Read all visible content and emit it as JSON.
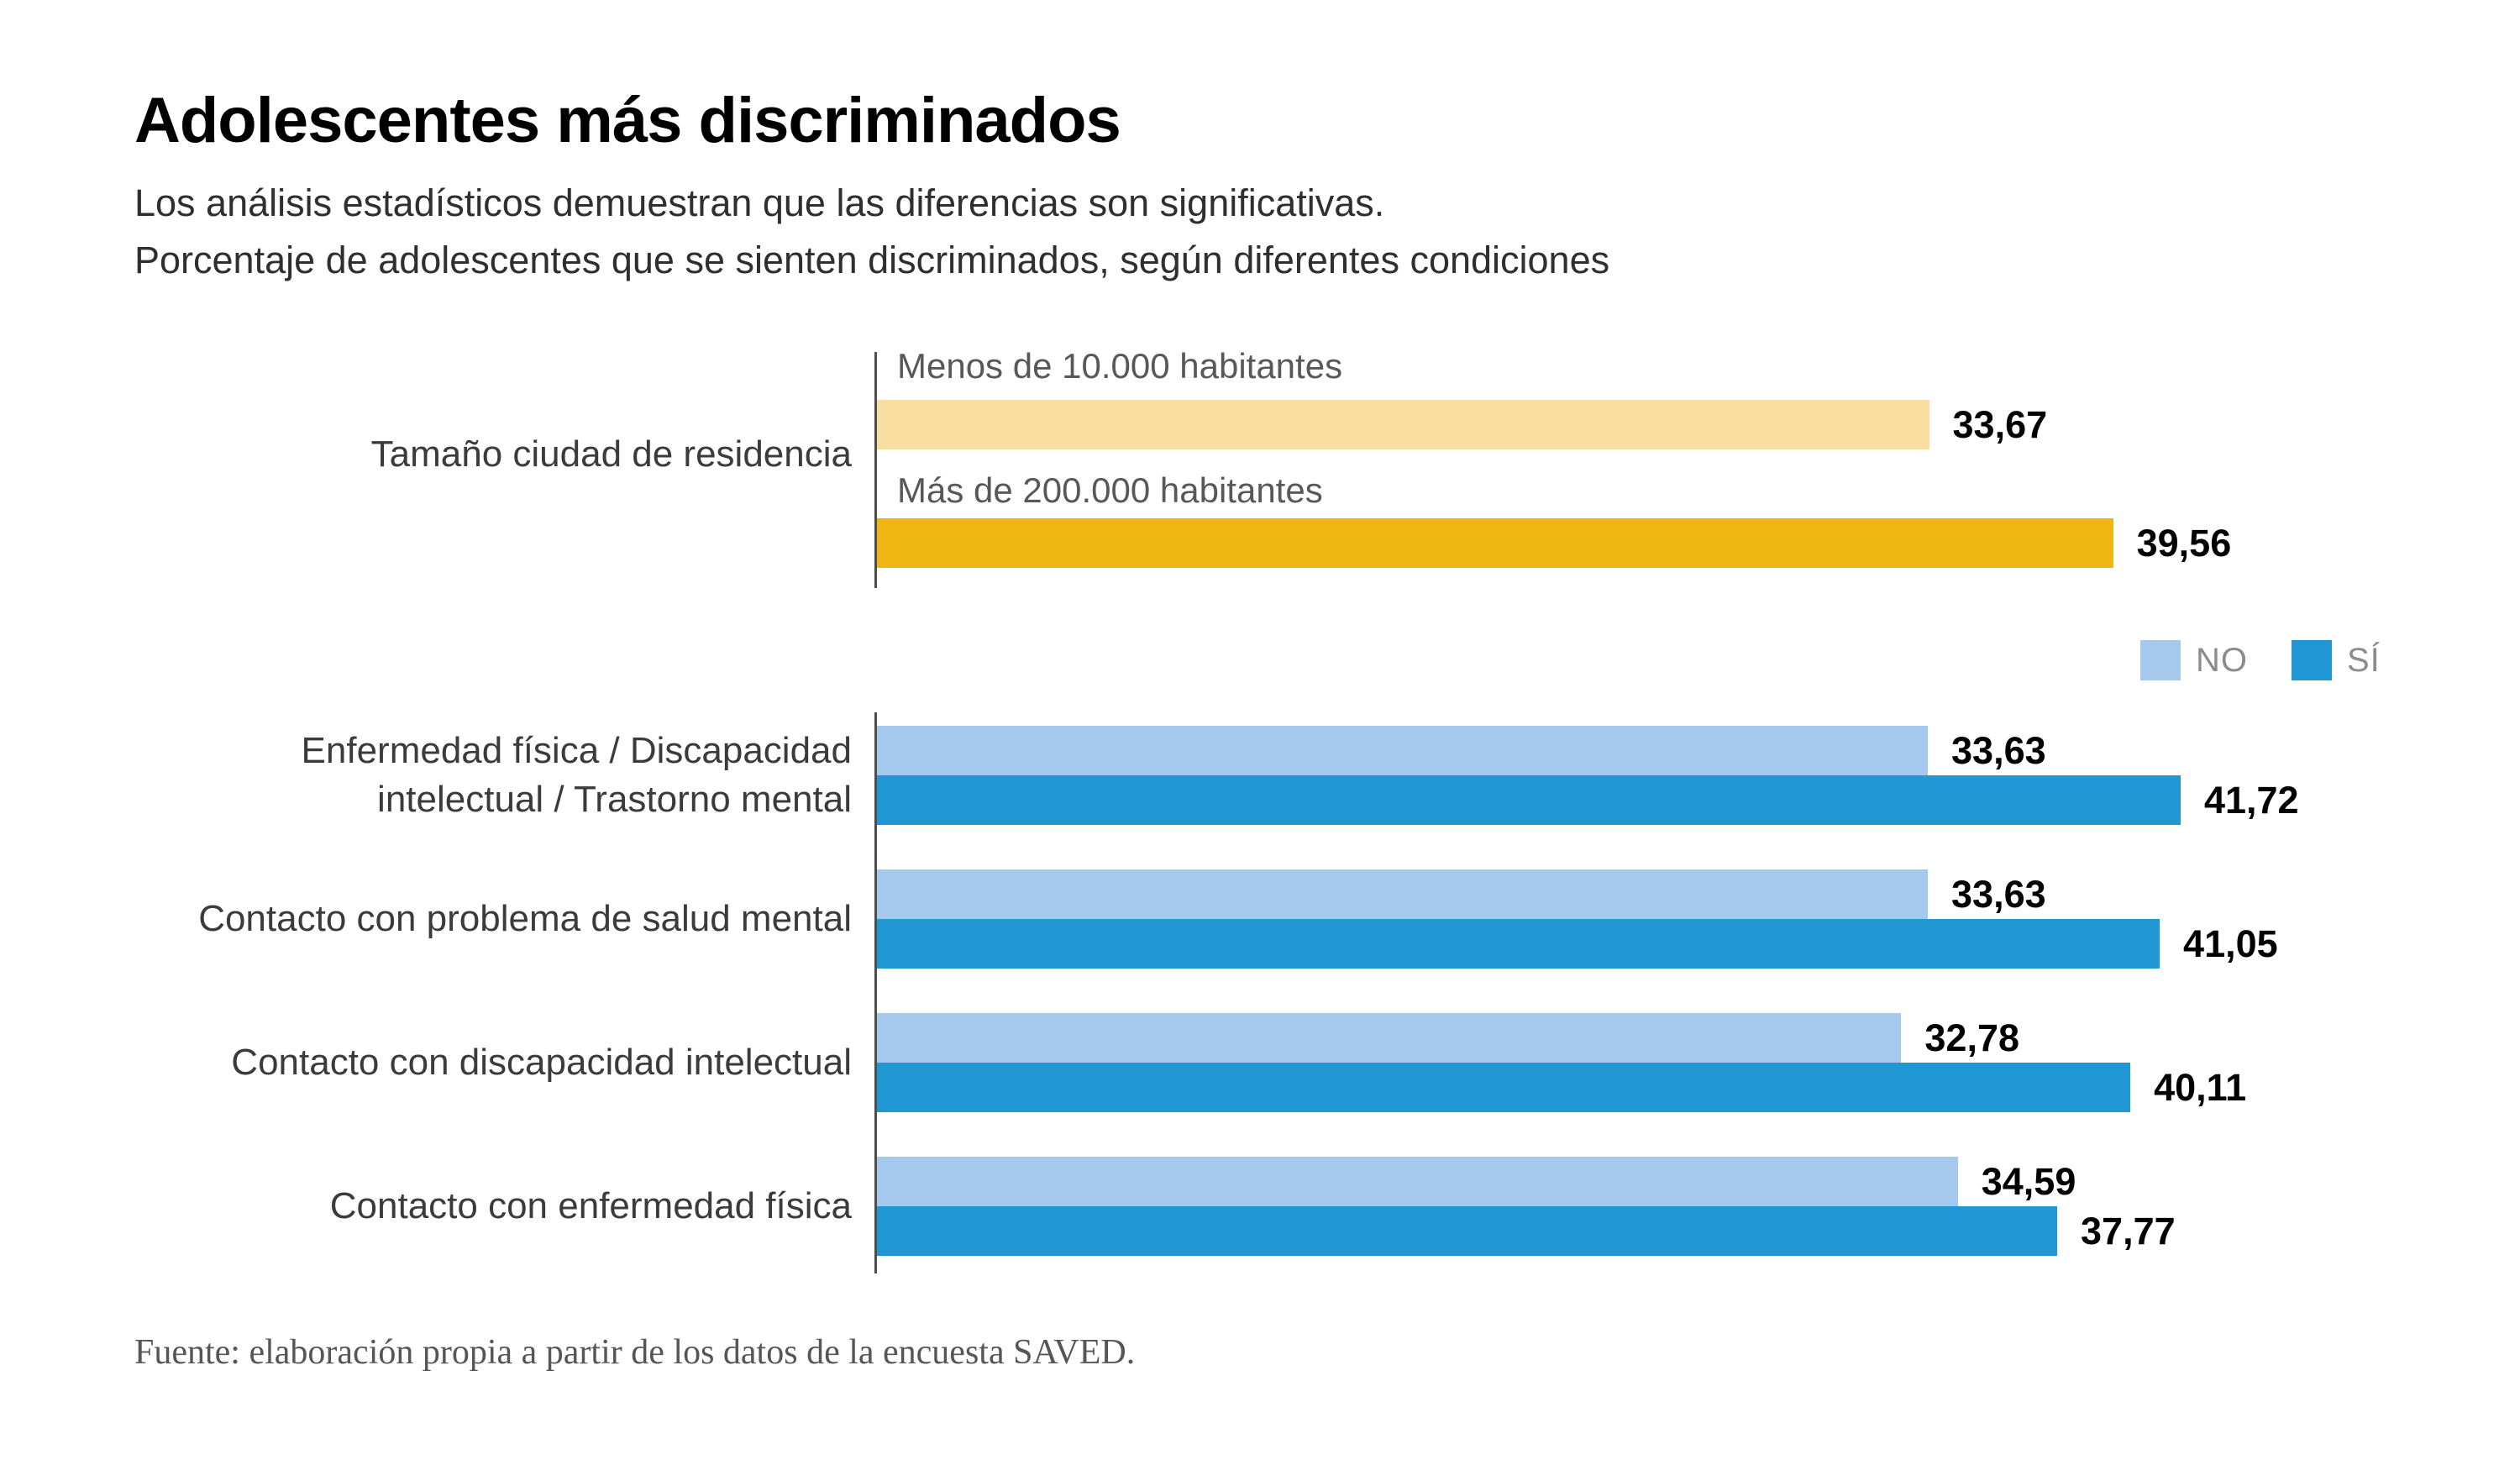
{
  "chart_data": {
    "type": "bar",
    "orientation": "horizontal",
    "title": "Adolescentes más discriminados",
    "subtitle1": "Los análisis estadísticos demuestran que las diferencias son significativas.",
    "subtitle2": "Porcentaje de adolescentes que se sienten discriminados, según diferentes condiciones",
    "axis_max": 50,
    "grid": false,
    "legend_position": "top-right",
    "city_section": {
      "category": "Tamaño ciudad de residencia",
      "bars": [
        {
          "label": "Menos de 10.000 habitantes",
          "value": 33.67,
          "value_display": "33,67",
          "color": "#f8dfa1"
        },
        {
          "label": "Más de 200.000 habitantes",
          "value": 39.56,
          "value_display": "39,56",
          "color": "#efb513"
        }
      ]
    },
    "condition_section": {
      "legend": [
        {
          "label": "NO",
          "color": "#a5c9ec"
        },
        {
          "label": "SÍ",
          "color": "#2097d3"
        }
      ],
      "categories": [
        "Enfermedad física / Discapacidad intelectual / Trastorno mental",
        "Contacto con problema de salud mental",
        "Contacto con discapacidad intelectual",
        "Contacto con enfermedad física"
      ],
      "series": [
        {
          "name": "NO",
          "values": [
            33.63,
            33.63,
            32.78,
            34.59
          ]
        },
        {
          "name": "SÍ",
          "values": [
            41.72,
            41.05,
            40.11,
            37.77
          ]
        }
      ],
      "groups": [
        {
          "category": "Enfermedad física / Discapacidad intelectual / Trastorno mental",
          "no": {
            "value": 33.63,
            "value_display": "33,63"
          },
          "si": {
            "value": 41.72,
            "value_display": "41,72"
          }
        },
        {
          "category": "Contacto con problema de salud mental",
          "no": {
            "value": 33.63,
            "value_display": "33,63"
          },
          "si": {
            "value": 41.05,
            "value_display": "41,05"
          }
        },
        {
          "category": "Contacto con discapacidad intelectual",
          "no": {
            "value": 32.78,
            "value_display": "32,78"
          },
          "si": {
            "value": 40.11,
            "value_display": "40,11"
          }
        },
        {
          "category": "Contacto con enfermedad física",
          "no": {
            "value": 34.59,
            "value_display": "34,59"
          },
          "si": {
            "value": 37.77,
            "value_display": "37,77"
          }
        }
      ]
    },
    "source": "Fuente: elaboración propia a partir de los datos de la encuesta SAVED.",
    "colors": {
      "light_yellow": "#f8dfa1",
      "golden_yellow": "#efb513",
      "light_blue": "#a5c9ec",
      "blue": "#2097d3",
      "axis": "#4d4d4d",
      "label_gray": "#58585a",
      "category_gray": "#3b3b3b",
      "legend_gray": "#8c8c8c",
      "source_gray": "#565656"
    }
  }
}
